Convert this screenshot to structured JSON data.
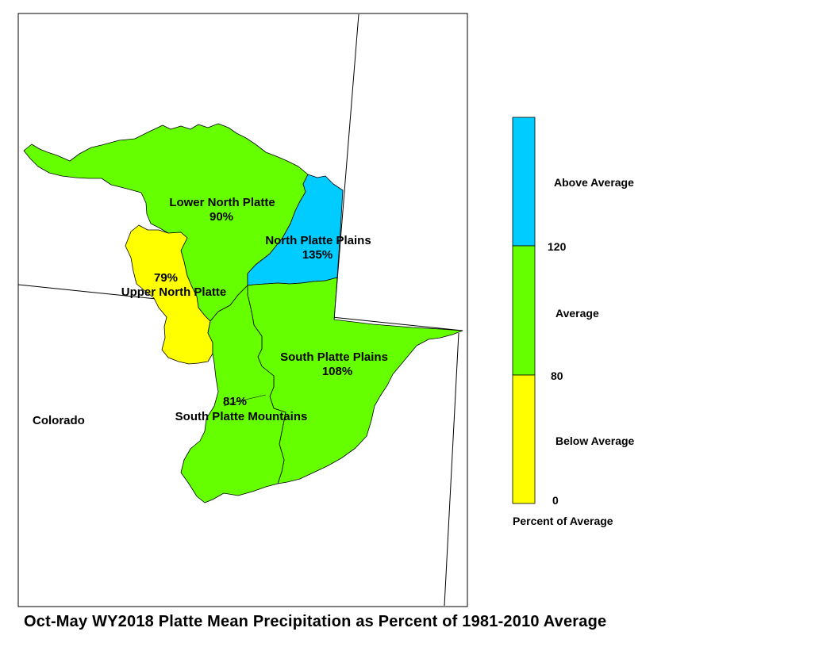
{
  "title": "Oct-May WY2018 Platte Mean Precipitation as Percent of 1981-2010 Average",
  "state_label": "Colorado",
  "colors": {
    "below": "#ffff00",
    "average": "#66ff00",
    "above": "#00ccff",
    "outline": "#000000"
  },
  "regions": [
    {
      "id": "lower-north-platte",
      "name": "Lower North Platte",
      "value": "90%",
      "category": "average"
    },
    {
      "id": "north-platte-plains",
      "name": "North Platte Plains",
      "value": "135%",
      "category": "above"
    },
    {
      "id": "upper-north-platte",
      "name": "Upper North Platte",
      "value": "79%",
      "category": "below"
    },
    {
      "id": "south-platte-plains",
      "name": "South Platte Plains",
      "value": "108%",
      "category": "average"
    },
    {
      "id": "south-platte-mountains",
      "name": "South Platte Mountains",
      "value": "81%",
      "category": "average"
    }
  ],
  "legend": {
    "title": "Percent of Average",
    "classes": [
      {
        "label": "Above Average",
        "category": "above",
        "range": [
          120,
          null
        ]
      },
      {
        "label": "Average",
        "category": "average",
        "range": [
          80,
          120
        ]
      },
      {
        "label": "Below Average",
        "category": "below",
        "range": [
          0,
          80
        ]
      }
    ],
    "breaks": [
      "120",
      "80",
      "0"
    ]
  }
}
